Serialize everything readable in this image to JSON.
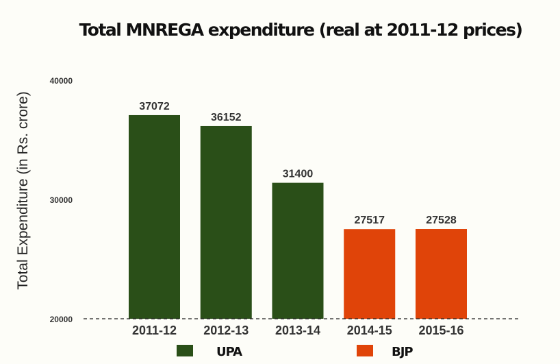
{
  "chart_data": {
    "type": "bar",
    "title": "Total MNREGA expenditure (real at 2011-12 prices)",
    "xlabel": "",
    "ylabel": "Total Expenditure (in Rs. crore)",
    "ylim": [
      20000,
      40000
    ],
    "yticks": [
      "20000",
      "30000",
      "40000"
    ],
    "ytick_values": [
      20000,
      30000,
      40000
    ],
    "categories": [
      "2011-12",
      "2012-13",
      "2013-14",
      "2014-15",
      "2015-16"
    ],
    "values": [
      37072,
      36152,
      31400,
      27517,
      27528
    ],
    "data_labels": [
      "37072",
      "36152",
      "31400",
      "27517",
      "27528"
    ],
    "groups": [
      "UPA",
      "UPA",
      "UPA",
      "BJP",
      "BJP"
    ],
    "grid": false,
    "baseline_style": "dashed",
    "legend": {
      "placement": "bottom",
      "entries": [
        {
          "label": "UPA",
          "color": "#2a4f18"
        },
        {
          "label": "BJP",
          "color": "#e04409"
        }
      ]
    },
    "colors": {
      "UPA": "#2a4f18",
      "BJP": "#e04409"
    }
  }
}
